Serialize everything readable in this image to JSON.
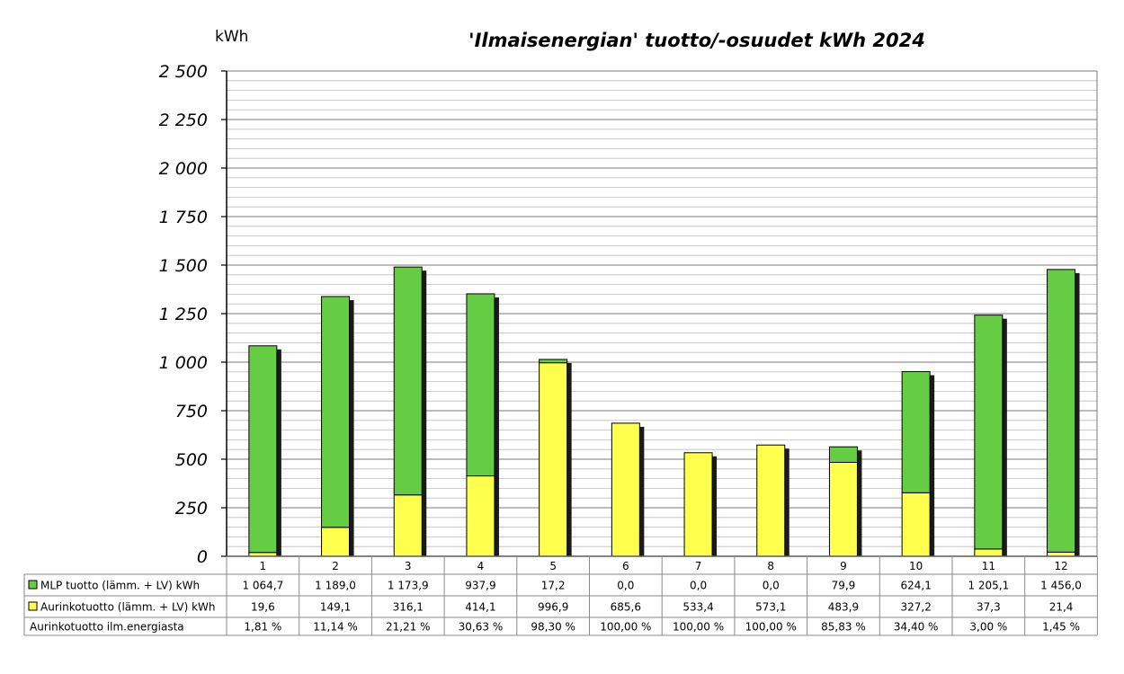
{
  "chart_data": {
    "type": "bar",
    "stacked": true,
    "title": "'Ilmaisenergian' tuotto/-osuudet kWh 2024",
    "ylabel": "kWh",
    "ylim": [
      0,
      2500
    ],
    "grid": true,
    "categories": [
      "1",
      "2",
      "3",
      "4",
      "5",
      "6",
      "7",
      "8",
      "9",
      "10",
      "11",
      "12"
    ],
    "y_ticks": [
      "0",
      "250",
      "500",
      "750",
      "1 000",
      "1 250",
      "1 500",
      "1 750",
      "2 000",
      "2 250",
      "2 500"
    ],
    "series": [
      {
        "name": "Aurinkotuotto (lämm. + LV) kWh",
        "color": "#ffff4d",
        "values": [
          19.6,
          149.1,
          316.1,
          414.1,
          996.9,
          685.6,
          533.4,
          573.1,
          483.9,
          327.2,
          37.3,
          21.4
        ],
        "labels": [
          "19,6",
          "149,1",
          "316,1",
          "414,1",
          "996,9",
          "685,6",
          "533,4",
          "573,1",
          "483,9",
          "327,2",
          "37,3",
          "21,4"
        ]
      },
      {
        "name": "MLP tuotto (lämm. + LV) kWh",
        "color": "#66cc44",
        "values": [
          1064.7,
          1189.0,
          1173.9,
          937.9,
          17.2,
          0.0,
          0.0,
          0.0,
          79.9,
          624.1,
          1205.1,
          1456.0
        ],
        "labels": [
          "1 064,7",
          "1 189,0",
          "1 173,9",
          "937,9",
          "17,2",
          "0,0",
          "0,0",
          "0,0",
          "79,9",
          "624,1",
          "1 205,1",
          "1 456,0"
        ]
      }
    ],
    "table": {
      "rows": [
        {
          "label": "MLP tuotto (lämm. + LV) kWh",
          "series": 1
        },
        {
          "label": "Aurinkotuotto (lämm. + LV) kWh",
          "series": 0
        },
        {
          "label": "Aurinkotuotto ilm.energiasta",
          "values": [
            "1,81 %",
            "11,14 %",
            "21,21 %",
            "30,63 %",
            "98,30 %",
            "100,00 %",
            "100,00 %",
            "100,00 %",
            "85,83 %",
            "34,40 %",
            "3,00 %",
            "1,45 %"
          ]
        }
      ]
    }
  }
}
